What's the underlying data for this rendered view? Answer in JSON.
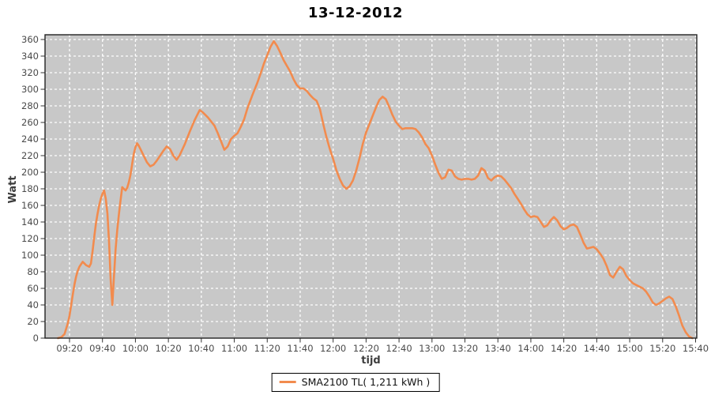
{
  "title": "13-12-2012",
  "legend": {
    "label": "SMA2100 TL( 1,211 kWh )",
    "series_color": "#f28b4e"
  },
  "colors": {
    "plot_background": "#c8c8c8",
    "gridline": "#ffffff",
    "series_line": "#f28b4e",
    "axis_frame": "#222222",
    "tick_mark": "#333333",
    "tick_label": "#4a4a4a",
    "axis_label": "#3d3d3d",
    "title_text": "#000000"
  },
  "chart_data": {
    "type": "line",
    "title": "13-12-2012",
    "xlabel": "tijd",
    "ylabel": "Watt",
    "ylim": [
      0,
      360
    ],
    "ytick_step": 20,
    "grid": "white dashed gridlines on gray plot background",
    "legend_position": "bottom-center",
    "x_ticks": [
      "09:20",
      "09:40",
      "10:00",
      "10:20",
      "10:40",
      "11:00",
      "11:20",
      "11:40",
      "12:00",
      "12:20",
      "12:40",
      "13:00",
      "13:20",
      "13:40",
      "14:00",
      "14:20",
      "14:40",
      "15:00",
      "15:20",
      "15:40"
    ],
    "series": [
      {
        "name": "SMA2100 TL( 1,211 kWh )",
        "color": "#f28b4e",
        "points": [
          [
            "09:13",
            0
          ],
          [
            "09:15",
            1
          ],
          [
            "09:17",
            5
          ],
          [
            "09:19",
            18
          ],
          [
            "09:20",
            27
          ],
          [
            "09:21",
            40
          ],
          [
            "09:22",
            53
          ],
          [
            "09:23",
            65
          ],
          [
            "09:24",
            74
          ],
          [
            "09:25",
            81
          ],
          [
            "09:26",
            86
          ],
          [
            "09:28",
            92
          ],
          [
            "09:30",
            88
          ],
          [
            "09:32",
            86
          ],
          [
            "09:33",
            90
          ],
          [
            "09:34",
            105
          ],
          [
            "09:35",
            122
          ],
          [
            "09:36",
            138
          ],
          [
            "09:37",
            150
          ],
          [
            "09:38",
            160
          ],
          [
            "09:39",
            168
          ],
          [
            "09:40",
            174
          ],
          [
            "09:41",
            178
          ],
          [
            "09:42",
            168
          ],
          [
            "09:43",
            150
          ],
          [
            "09:44",
            115
          ],
          [
            "09:45",
            70
          ],
          [
            "09:46",
            40
          ],
          [
            "09:47",
            75
          ],
          [
            "09:48",
            108
          ],
          [
            "09:49",
            131
          ],
          [
            "09:50",
            150
          ],
          [
            "09:51",
            167
          ],
          [
            "09:52",
            182
          ],
          [
            "09:53",
            180
          ],
          [
            "09:54",
            178
          ],
          [
            "09:55",
            181
          ],
          [
            "09:56",
            188
          ],
          [
            "09:57",
            197
          ],
          [
            "09:58",
            210
          ],
          [
            "09:59",
            222
          ],
          [
            "10:00",
            230
          ],
          [
            "10:01",
            235
          ],
          [
            "10:02",
            232
          ],
          [
            "10:03",
            228
          ],
          [
            "10:05",
            220
          ],
          [
            "10:07",
            212
          ],
          [
            "10:09",
            207
          ],
          [
            "10:11",
            209
          ],
          [
            "10:13",
            214
          ],
          [
            "10:15",
            220
          ],
          [
            "10:17",
            226
          ],
          [
            "10:19",
            231
          ],
          [
            "10:21",
            228
          ],
          [
            "10:23",
            220
          ],
          [
            "10:25",
            215
          ],
          [
            "10:27",
            221
          ],
          [
            "10:30",
            234
          ],
          [
            "10:33",
            249
          ],
          [
            "10:36",
            263
          ],
          [
            "10:39",
            275
          ],
          [
            "10:41",
            272
          ],
          [
            "10:44",
            266
          ],
          [
            "10:46",
            261
          ],
          [
            "10:48",
            256
          ],
          [
            "10:50",
            247
          ],
          [
            "10:52",
            237
          ],
          [
            "10:54",
            227
          ],
          [
            "10:56",
            231
          ],
          [
            "10:58",
            240
          ],
          [
            "11:00",
            244
          ],
          [
            "11:02",
            247
          ],
          [
            "11:04",
            255
          ],
          [
            "11:06",
            264
          ],
          [
            "11:08",
            277
          ],
          [
            "11:11",
            293
          ],
          [
            "11:14",
            308
          ],
          [
            "11:16",
            319
          ],
          [
            "11:18",
            331
          ],
          [
            "11:20",
            341
          ],
          [
            "11:22",
            351
          ],
          [
            "11:24",
            358
          ],
          [
            "11:26",
            352
          ],
          [
            "11:28",
            344
          ],
          [
            "11:30",
            335
          ],
          [
            "11:32",
            328
          ],
          [
            "11:34",
            321
          ],
          [
            "11:36",
            312
          ],
          [
            "11:38",
            305
          ],
          [
            "11:40",
            301
          ],
          [
            "11:42",
            301
          ],
          [
            "11:44",
            298
          ],
          [
            "11:46",
            293
          ],
          [
            "11:48",
            289
          ],
          [
            "11:50",
            286
          ],
          [
            "11:52",
            276
          ],
          [
            "11:54",
            258
          ],
          [
            "11:56",
            242
          ],
          [
            "11:58",
            228
          ],
          [
            "12:00",
            216
          ],
          [
            "12:02",
            202
          ],
          [
            "12:04",
            192
          ],
          [
            "12:06",
            184
          ],
          [
            "12:08",
            180
          ],
          [
            "12:10",
            183
          ],
          [
            "12:12",
            190
          ],
          [
            "12:14",
            202
          ],
          [
            "12:16",
            217
          ],
          [
            "12:18",
            234
          ],
          [
            "12:20",
            248
          ],
          [
            "12:22",
            258
          ],
          [
            "12:24",
            268
          ],
          [
            "12:26",
            278
          ],
          [
            "12:28",
            287
          ],
          [
            "12:30",
            291
          ],
          [
            "12:32",
            288
          ],
          [
            "12:34",
            279
          ],
          [
            "12:36",
            269
          ],
          [
            "12:38",
            261
          ],
          [
            "12:40",
            256
          ],
          [
            "12:42",
            252
          ],
          [
            "12:44",
            253
          ],
          [
            "12:46",
            253
          ],
          [
            "12:48",
            253
          ],
          [
            "12:50",
            252
          ],
          [
            "12:52",
            248
          ],
          [
            "12:54",
            242
          ],
          [
            "12:56",
            234
          ],
          [
            "12:58",
            229
          ],
          [
            "13:00",
            220
          ],
          [
            "13:02",
            209
          ],
          [
            "13:04",
            199
          ],
          [
            "13:06",
            192
          ],
          [
            "13:08",
            194
          ],
          [
            "13:10",
            203
          ],
          [
            "13:12",
            202
          ],
          [
            "13:14",
            195
          ],
          [
            "13:16",
            192
          ],
          [
            "13:18",
            191
          ],
          [
            "13:20",
            192
          ],
          [
            "13:22",
            192
          ],
          [
            "13:24",
            191
          ],
          [
            "13:26",
            192
          ],
          [
            "13:28",
            196
          ],
          [
            "13:30",
            205
          ],
          [
            "13:32",
            202
          ],
          [
            "13:34",
            193
          ],
          [
            "13:36",
            190
          ],
          [
            "13:38",
            194
          ],
          [
            "13:40",
            196
          ],
          [
            "13:42",
            195
          ],
          [
            "13:44",
            191
          ],
          [
            "13:46",
            186
          ],
          [
            "13:48",
            181
          ],
          [
            "13:50",
            174
          ],
          [
            "13:52",
            168
          ],
          [
            "13:54",
            162
          ],
          [
            "13:56",
            155
          ],
          [
            "13:58",
            149
          ],
          [
            "14:00",
            146
          ],
          [
            "14:02",
            147
          ],
          [
            "14:04",
            146
          ],
          [
            "14:06",
            140
          ],
          [
            "14:08",
            134
          ],
          [
            "14:10",
            136
          ],
          [
            "14:12",
            142
          ],
          [
            "14:14",
            146
          ],
          [
            "14:16",
            142
          ],
          [
            "14:18",
            135
          ],
          [
            "14:20",
            131
          ],
          [
            "14:22",
            133
          ],
          [
            "14:24",
            136
          ],
          [
            "14:26",
            137
          ],
          [
            "14:28",
            134
          ],
          [
            "14:30",
            125
          ],
          [
            "14:32",
            115
          ],
          [
            "14:34",
            108
          ],
          [
            "14:36",
            109
          ],
          [
            "14:38",
            110
          ],
          [
            "14:40",
            107
          ],
          [
            "14:42",
            102
          ],
          [
            "14:44",
            96
          ],
          [
            "14:46",
            87
          ],
          [
            "14:48",
            76
          ],
          [
            "14:50",
            73
          ],
          [
            "14:52",
            80
          ],
          [
            "14:54",
            86
          ],
          [
            "14:56",
            83
          ],
          [
            "14:58",
            75
          ],
          [
            "15:00",
            70
          ],
          [
            "15:02",
            66
          ],
          [
            "15:04",
            64
          ],
          [
            "15:06",
            62
          ],
          [
            "15:08",
            60
          ],
          [
            "15:10",
            56
          ],
          [
            "15:12",
            50
          ],
          [
            "15:14",
            43
          ],
          [
            "15:16",
            40
          ],
          [
            "15:18",
            42
          ],
          [
            "15:20",
            45
          ],
          [
            "15:22",
            48
          ],
          [
            "15:24",
            50
          ],
          [
            "15:26",
            47
          ],
          [
            "15:28",
            38
          ],
          [
            "15:30",
            27
          ],
          [
            "15:32",
            15
          ],
          [
            "15:34",
            7
          ],
          [
            "15:36",
            2
          ],
          [
            "15:38",
            0
          ]
        ]
      }
    ]
  }
}
